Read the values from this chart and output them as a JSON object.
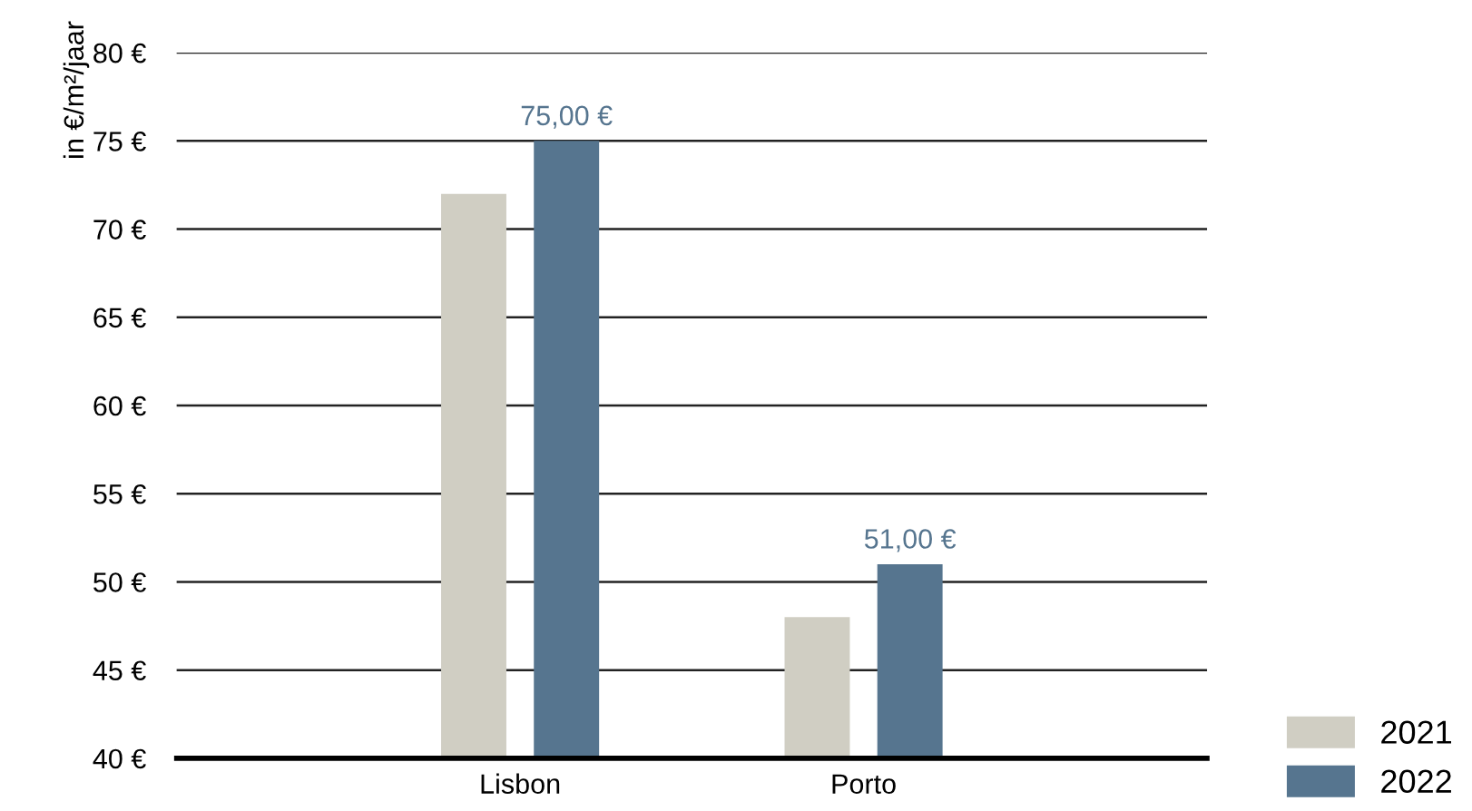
{
  "chart_data": {
    "type": "bar",
    "ylabel": "in €/m²/jaar",
    "categories": [
      "Lisbon",
      "Porto"
    ],
    "series": [
      {
        "name": "2021",
        "color": "#d0cec3",
        "values": [
          72.0,
          48.0
        ]
      },
      {
        "name": "2022",
        "color": "#56758f",
        "values": [
          75,
          51
        ],
        "value_labels": [
          "75,00 €",
          "51,00 €"
        ]
      }
    ],
    "ylim": [
      40,
      80
    ],
    "yticks": [
      {
        "value": 40,
        "label": "40 €"
      },
      {
        "value": 45,
        "label": "45 €"
      },
      {
        "value": 50,
        "label": "50 €"
      },
      {
        "value": 55,
        "label": "55 €"
      },
      {
        "value": 60,
        "label": "60 €"
      },
      {
        "value": 65,
        "label": "65 €"
      },
      {
        "value": 70,
        "label": "70 €"
      },
      {
        "value": 75,
        "label": "75 €"
      },
      {
        "value": 80,
        "label": "80 €"
      }
    ],
    "grid": "y",
    "legend": "bottom right"
  }
}
